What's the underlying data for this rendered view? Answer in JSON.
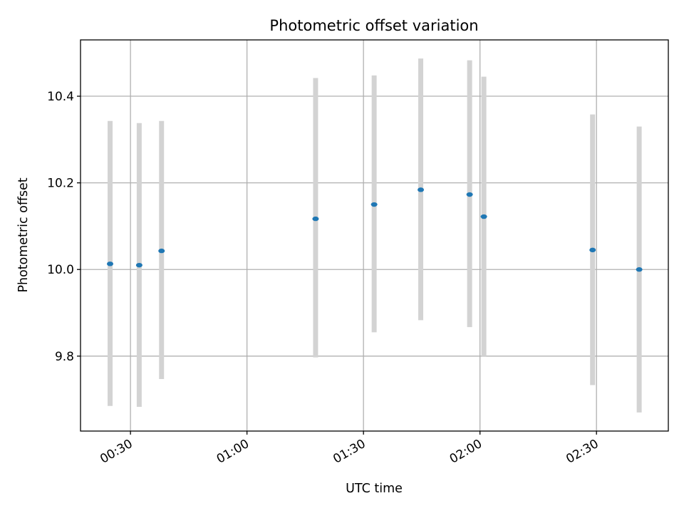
{
  "chart_data": {
    "type": "scatter",
    "title": "Photometric offset variation",
    "xlabel": "UTC time",
    "ylabel": "Photometric offset",
    "x_ticks": [
      "00:30",
      "01:00",
      "01:30",
      "02:00",
      "02:30"
    ],
    "x_tick_values": [
      "00:30",
      "01:00",
      "01:30",
      "02:00",
      "02:30"
    ],
    "xlim": [
      "00:17:08",
      "02:48:30"
    ],
    "y_ticks": [
      "9.8",
      "10.0",
      "10.2",
      "10.4"
    ],
    "y_tick_values": [
      9.8,
      10.0,
      10.2,
      10.4
    ],
    "ylim": [
      9.627,
      10.53
    ],
    "grid": true,
    "point_color": "#1f77b4",
    "errorbar_color": "#d3d3d3",
    "points": [
      {
        "x": "00:24:45",
        "y": 10.013,
        "ymin": 9.685,
        "ymax": 10.343
      },
      {
        "x": "00:32:15",
        "y": 10.01,
        "ymin": 9.683,
        "ymax": 10.338
      },
      {
        "x": "00:38:00",
        "y": 10.043,
        "ymin": 9.747,
        "ymax": 10.343
      },
      {
        "x": "01:17:40",
        "y": 10.117,
        "ymin": 9.797,
        "ymax": 10.442
      },
      {
        "x": "01:32:45",
        "y": 10.15,
        "ymin": 9.855,
        "ymax": 10.448
      },
      {
        "x": "01:44:45",
        "y": 10.184,
        "ymin": 9.883,
        "ymax": 10.487
      },
      {
        "x": "01:57:20",
        "y": 10.173,
        "ymin": 9.867,
        "ymax": 10.483
      },
      {
        "x": "02:01:00",
        "y": 10.122,
        "ymin": 9.8,
        "ymax": 10.445
      },
      {
        "x": "02:29:00",
        "y": 10.045,
        "ymin": 9.733,
        "ymax": 10.358
      },
      {
        "x": "02:41:00",
        "y": 10.0,
        "ymin": 9.67,
        "ymax": 10.33
      }
    ]
  }
}
